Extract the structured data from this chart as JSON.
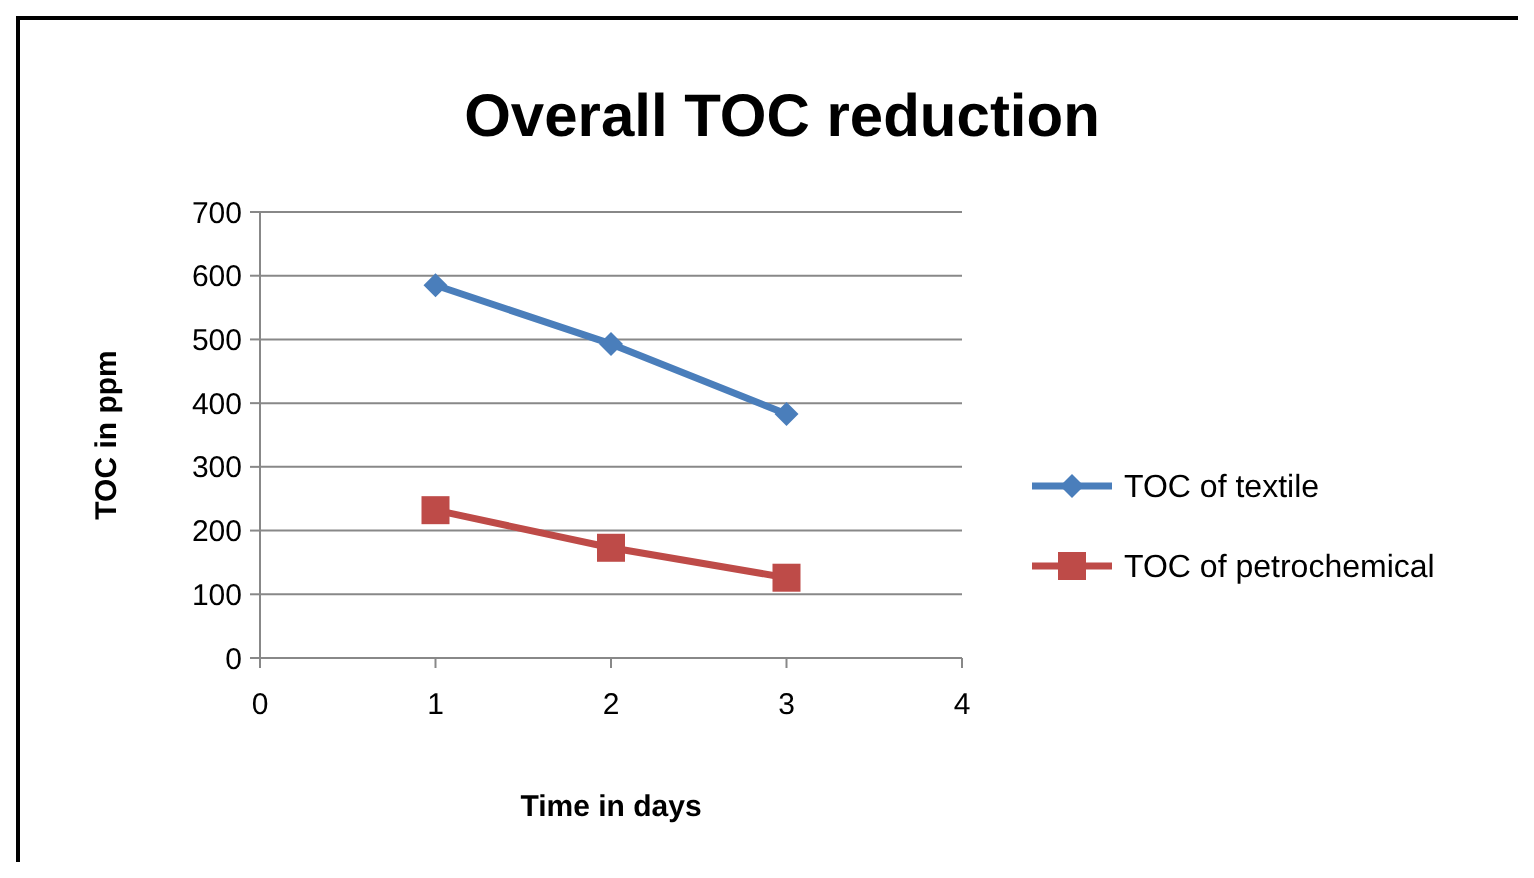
{
  "chart_data": {
    "type": "line",
    "title": "Overall TOC reduction",
    "xlabel": "Time in days",
    "ylabel": "TOC in ppm",
    "x": [
      1,
      2,
      3
    ],
    "xlim": [
      0,
      4
    ],
    "xticks": [
      0,
      1,
      2,
      3,
      4
    ],
    "ylim": [
      0,
      700
    ],
    "yticks": [
      0,
      100,
      200,
      300,
      400,
      500,
      600,
      700
    ],
    "grid": "y",
    "legend": "right",
    "series": [
      {
        "name": "TOC of textile",
        "color": "#4a7ebb",
        "marker": "diamond",
        "values": [
          585,
          493,
          383
        ]
      },
      {
        "name": "TOC of petrochemical",
        "color": "#be4b48",
        "marker": "square",
        "values": [
          232,
          173,
          126
        ]
      }
    ]
  }
}
